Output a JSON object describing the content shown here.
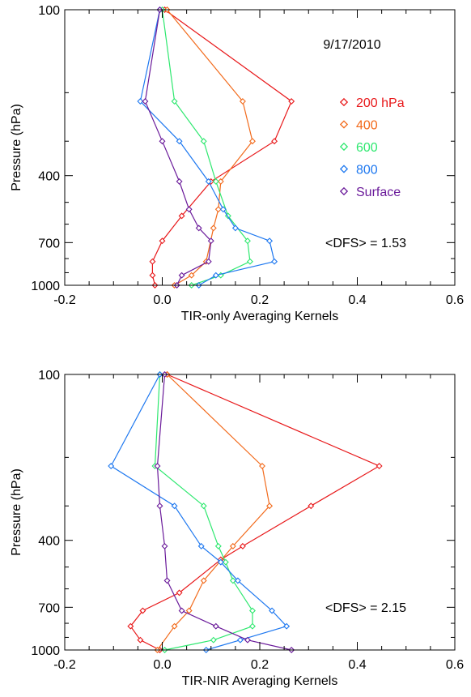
{
  "figure": {
    "date_label": "9/17/2010"
  },
  "legend": {
    "placement": "right",
    "entries": [
      {
        "label": "200 hPa",
        "color": "#e8181a"
      },
      {
        "label": "400",
        "color": "#f26a1b"
      },
      {
        "label": "600",
        "color": "#2ee86f"
      },
      {
        "label": "800",
        "color": "#1e78f0"
      },
      {
        "label": "Surface",
        "color": "#6a1a9a"
      }
    ]
  },
  "chart_data": [
    {
      "type": "line",
      "xlabel": "TIR-only Averaging Kernels",
      "ylabel": "Pressure (hPa)",
      "annotation": "<DFS> = 1.53",
      "xlim": [
        -0.2,
        0.6
      ],
      "ylim": [
        1000,
        100
      ],
      "y_scale": "log",
      "x_ticks": [
        "-0.2",
        "0.0",
        "0.2",
        "0.4",
        "0.6"
      ],
      "y_ticks": [
        "100",
        "400",
        "700",
        "1000"
      ],
      "series": [
        {
          "name": "200 hPa",
          "color": "#e8181a",
          "points": [
            [
              0.005,
              100
            ],
            [
              0.265,
              215
            ],
            [
              0.23,
              300
            ],
            [
              0.1,
              420
            ],
            [
              0.04,
              560
            ],
            [
              0.0,
              690
            ],
            [
              -0.02,
              820
            ],
            [
              -0.02,
              920
            ],
            [
              -0.015,
              1000
            ]
          ]
        },
        {
          "name": "400",
          "color": "#f26a1b",
          "points": [
            [
              0.01,
              100
            ],
            [
              0.165,
              215
            ],
            [
              0.185,
              300
            ],
            [
              0.12,
              420
            ],
            [
              0.115,
              530
            ],
            [
              0.105,
              620
            ],
            [
              0.09,
              820
            ],
            [
              0.06,
              920
            ],
            [
              0.025,
              1000
            ]
          ]
        },
        {
          "name": "600",
          "color": "#2ee86f",
          "points": [
            [
              0.0,
              100
            ],
            [
              0.025,
              215
            ],
            [
              0.085,
              300
            ],
            [
              0.11,
              420
            ],
            [
              0.135,
              560
            ],
            [
              0.175,
              690
            ],
            [
              0.18,
              820
            ],
            [
              0.12,
              920
            ],
            [
              0.06,
              1000
            ]
          ]
        },
        {
          "name": "800",
          "color": "#1e78f0",
          "points": [
            [
              -0.005,
              100
            ],
            [
              -0.045,
              215
            ],
            [
              0.035,
              300
            ],
            [
              0.095,
              420
            ],
            [
              0.125,
              530
            ],
            [
              0.15,
              620
            ],
            [
              0.22,
              690
            ],
            [
              0.23,
              820
            ],
            [
              0.11,
              920
            ],
            [
              0.075,
              1000
            ]
          ]
        },
        {
          "name": "Surface",
          "color": "#6a1a9a",
          "points": [
            [
              -0.005,
              100
            ],
            [
              -0.035,
              215
            ],
            [
              0.0,
              300
            ],
            [
              0.035,
              420
            ],
            [
              0.055,
              530
            ],
            [
              0.075,
              620
            ],
            [
              0.1,
              690
            ],
            [
              0.095,
              820
            ],
            [
              0.04,
              920
            ],
            [
              0.03,
              1000
            ]
          ]
        }
      ]
    },
    {
      "type": "line",
      "xlabel": "TIR-NIR Averaging Kernels",
      "ylabel": "Pressure (hPa)",
      "annotation": "<DFS> = 2.15",
      "xlim": [
        -0.2,
        0.6
      ],
      "ylim": [
        1000,
        100
      ],
      "y_scale": "log",
      "x_ticks": [
        "-0.2",
        "0.0",
        "0.2",
        "0.4",
        "0.6"
      ],
      "y_ticks": [
        "100",
        "400",
        "700",
        "1000"
      ],
      "series": [
        {
          "name": "200 hPa",
          "color": "#e8181a",
          "points": [
            [
              0.01,
              100
            ],
            [
              0.445,
              215
            ],
            [
              0.305,
              300
            ],
            [
              0.165,
              420
            ],
            [
              0.12,
              470
            ],
            [
              0.035,
              620
            ],
            [
              -0.04,
              720
            ],
            [
              -0.065,
              820
            ],
            [
              -0.045,
              920
            ],
            [
              -0.005,
              1000
            ]
          ]
        },
        {
          "name": "400",
          "color": "#f26a1b",
          "points": [
            [
              0.01,
              100
            ],
            [
              0.205,
              215
            ],
            [
              0.22,
              300
            ],
            [
              0.145,
              420
            ],
            [
              0.085,
              560
            ],
            [
              0.055,
              720
            ],
            [
              0.025,
              820
            ],
            [
              -0.01,
              1000
            ]
          ]
        },
        {
          "name": "600",
          "color": "#2ee86f",
          "points": [
            [
              -0.005,
              100
            ],
            [
              -0.015,
              215
            ],
            [
              0.085,
              300
            ],
            [
              0.115,
              420
            ],
            [
              0.13,
              480
            ],
            [
              0.145,
              560
            ],
            [
              0.185,
              720
            ],
            [
              0.185,
              820
            ],
            [
              0.105,
              920
            ],
            [
              0.005,
              1000
            ]
          ]
        },
        {
          "name": "800",
          "color": "#1e78f0",
          "points": [
            [
              -0.005,
              100
            ],
            [
              -0.105,
              215
            ],
            [
              0.025,
              300
            ],
            [
              0.08,
              420
            ],
            [
              0.12,
              480
            ],
            [
              0.155,
              560
            ],
            [
              0.225,
              720
            ],
            [
              0.255,
              820
            ],
            [
              0.16,
              920
            ],
            [
              0.09,
              1000
            ]
          ]
        },
        {
          "name": "Surface",
          "color": "#6a1a9a",
          "points": [
            [
              0.005,
              100
            ],
            [
              -0.01,
              215
            ],
            [
              -0.005,
              300
            ],
            [
              0.005,
              420
            ],
            [
              0.01,
              560
            ],
            [
              0.04,
              720
            ],
            [
              0.11,
              820
            ],
            [
              0.175,
              920
            ],
            [
              0.265,
              1000
            ]
          ]
        }
      ]
    }
  ]
}
